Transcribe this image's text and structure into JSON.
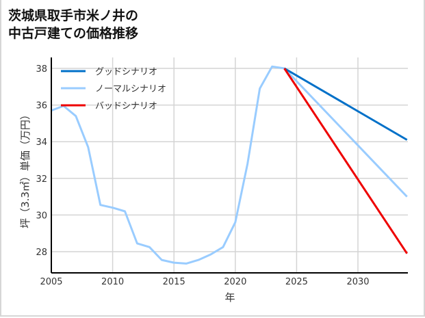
{
  "title_line1": "茨城県取手市米ノ井の",
  "title_line2": "中古戸建ての価格推移",
  "chart_data": {
    "type": "line",
    "title": "茨城県取手市米ノ井の中古戸建ての価格推移",
    "xlabel": "年",
    "ylabel": "坪（3.3㎡）単価（万円）",
    "xlim": [
      2005,
      2034
    ],
    "ylim": [
      26.8,
      38.4
    ],
    "x_ticks": [
      2005,
      2010,
      2015,
      2020,
      2025,
      2030
    ],
    "y_ticks": [
      28,
      30,
      32,
      34,
      36,
      38
    ],
    "grid": true,
    "legend_position": "upper left",
    "series": [
      {
        "name": "グッドシナリオ",
        "color": "#0070c8",
        "x": [
          2024,
          2034
        ],
        "values": [
          38.0,
          34.1
        ]
      },
      {
        "name": "ノーマルシナリオ",
        "color": "#99ccff",
        "x": [
          2005,
          2006,
          2007,
          2008,
          2009,
          2010,
          2011,
          2012,
          2013,
          2014,
          2015,
          2016,
          2017,
          2018,
          2019,
          2020,
          2021,
          2022,
          2023,
          2024,
          2034
        ],
        "values": [
          35.7,
          35.95,
          35.4,
          33.7,
          30.55,
          30.4,
          30.2,
          28.45,
          28.25,
          27.55,
          27.4,
          27.35,
          27.55,
          27.85,
          28.25,
          29.6,
          32.8,
          36.9,
          38.1,
          38.0,
          31.0
        ]
      },
      {
        "name": "バッドシナリオ",
        "color": "#ee0000",
        "x": [
          2024,
          2034
        ],
        "values": [
          38.0,
          27.9
        ]
      }
    ]
  }
}
